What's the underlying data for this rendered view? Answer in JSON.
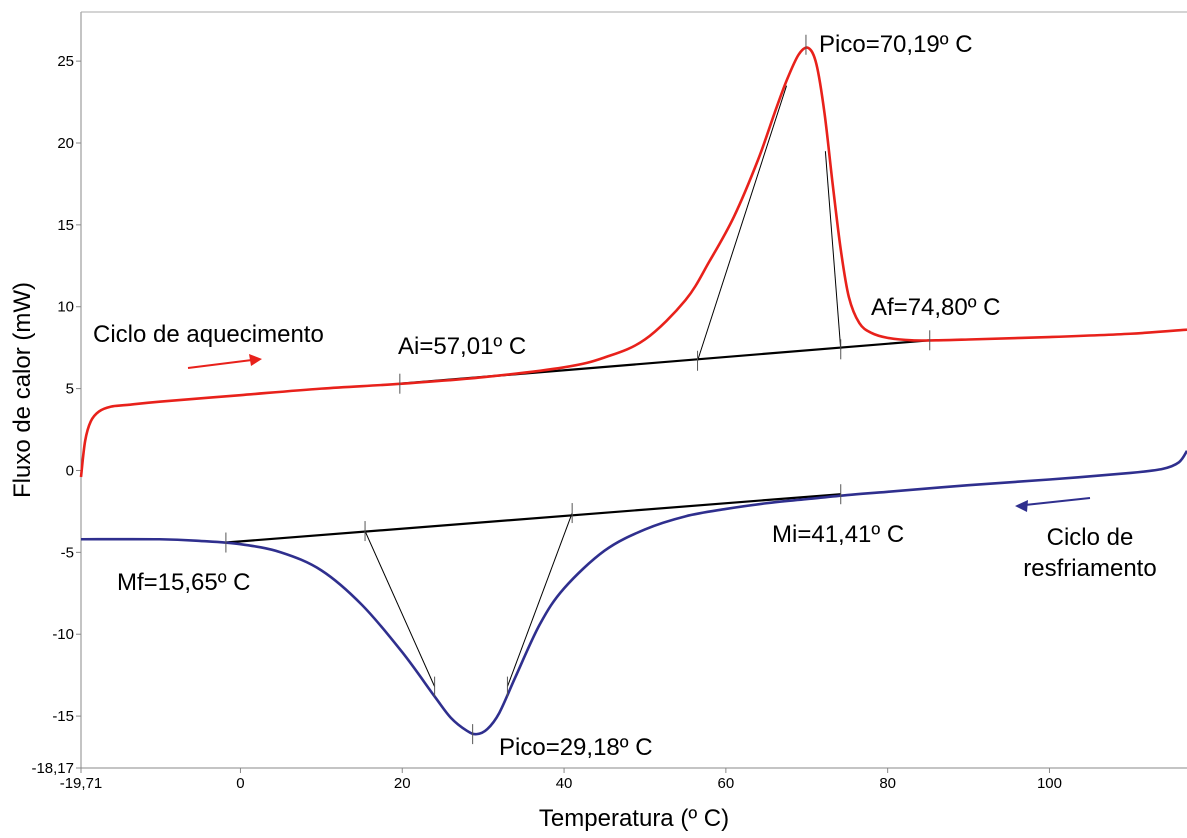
{
  "chart_data": {
    "type": "line",
    "title": "",
    "xlabel": "Temperatura (º C)",
    "ylabel": "Fluxo de calor (mW)",
    "xlim": [
      -19.71,
      117
    ],
    "ylim": [
      -18.17,
      28
    ],
    "x_ticks": [
      {
        "value": -19.71,
        "label": "-19,71"
      },
      {
        "value": 0,
        "label": "0"
      },
      {
        "value": 20,
        "label": "20"
      },
      {
        "value": 40,
        "label": "40"
      },
      {
        "value": 60,
        "label": "60"
      },
      {
        "value": 80,
        "label": "80"
      },
      {
        "value": 100,
        "label": "100"
      }
    ],
    "y_ticks": [
      {
        "value": -18.17,
        "label": "-18,17"
      },
      {
        "value": -15,
        "label": "-15"
      },
      {
        "value": -10,
        "label": "-10"
      },
      {
        "value": -5,
        "label": "-5"
      },
      {
        "value": 0,
        "label": "0"
      },
      {
        "value": 5,
        "label": "5"
      },
      {
        "value": 10,
        "label": "10"
      },
      {
        "value": 15,
        "label": "15"
      },
      {
        "value": 20,
        "label": "20"
      },
      {
        "value": 25,
        "label": "25"
      }
    ],
    "grid": false,
    "series": [
      {
        "name": "Ciclo de aquecimento",
        "color": "#e8211b",
        "x": [
          -19.71,
          -19.2,
          -18.5,
          -17.5,
          -16,
          -14,
          -10,
          0,
          10,
          20,
          30,
          40,
          45,
          50,
          55,
          58,
          61,
          64,
          66,
          67.5,
          69,
          70.2,
          71.2,
          72.2,
          73.2,
          74.2,
          75.2,
          76.5,
          78,
          80,
          83,
          86,
          90,
          100,
          110,
          117
        ],
        "values": [
          -0.4,
          1.8,
          3.0,
          3.6,
          3.9,
          4.0,
          4.2,
          4.6,
          5.0,
          5.3,
          5.7,
          6.3,
          6.9,
          8.0,
          10.4,
          12.8,
          15.5,
          19.0,
          21.8,
          23.8,
          25.4,
          25.8,
          24.8,
          21.8,
          17.5,
          13.5,
          10.6,
          9.0,
          8.4,
          8.1,
          7.95,
          7.95,
          8.0,
          8.15,
          8.35,
          8.6
        ]
      },
      {
        "name": "Ciclo de resfriamento",
        "color": "#2f2f8e",
        "x": [
          -19.71,
          -10,
          -5,
          0,
          5,
          10,
          15,
          20,
          24,
          26,
          28,
          29.2,
          30.5,
          32,
          34,
          37,
          40,
          45,
          50,
          55,
          60,
          65,
          70,
          75,
          80,
          90,
          100,
          110,
          114,
          116,
          117
        ],
        "values": [
          -4.2,
          -4.2,
          -4.3,
          -4.5,
          -5.0,
          -6.1,
          -8.2,
          -11.1,
          -13.8,
          -15.1,
          -15.9,
          -16.1,
          -15.8,
          -14.8,
          -12.6,
          -9.4,
          -7.2,
          -4.9,
          -3.6,
          -2.8,
          -2.35,
          -2.0,
          -1.75,
          -1.5,
          -1.3,
          -0.9,
          -0.55,
          -0.15,
          0.1,
          0.5,
          1.2
        ]
      }
    ],
    "baselines": [
      {
        "x": [
          19.7,
          85.2
        ],
        "values": [
          5.3,
          7.95
        ]
      },
      {
        "x": [
          -1.8,
          74.2
        ],
        "values": [
          -4.4,
          -1.45
        ]
      }
    ],
    "tangents": [
      {
        "x": [
          56.5,
          67.5
        ],
        "values": [
          6.7,
          23.5
        ]
      },
      {
        "x": [
          74.2,
          72.3
        ],
        "values": [
          7.4,
          19.5
        ]
      },
      {
        "x": [
          15.4,
          24
        ],
        "values": [
          -3.7,
          -13.2
        ]
      },
      {
        "x": [
          41,
          33
        ],
        "values": [
          -2.6,
          -13.2
        ]
      }
    ],
    "markers": [
      {
        "x": 19.7,
        "y": 5.3
      },
      {
        "x": 56.5,
        "y": 6.7
      },
      {
        "x": 74.2,
        "y": 7.4
      },
      {
        "x": 85.2,
        "y": 7.95
      },
      {
        "x": 69.9,
        "y": 26.0
      },
      {
        "x": -1.8,
        "y": -4.4
      },
      {
        "x": 15.4,
        "y": -3.7
      },
      {
        "x": 41,
        "y": -2.6
      },
      {
        "x": 74.2,
        "y": -1.45
      },
      {
        "x": 28.7,
        "y": -16.1
      },
      {
        "x": 24,
        "y": -13.2
      },
      {
        "x": 33,
        "y": -13.2
      }
    ],
    "annotations": {
      "heat_cycle": "Ciclo de aquecimento",
      "ai": "Ai=57,01º C",
      "af": "Af=74,80º C",
      "peak_heat": "Pico=70,19º C",
      "mi": "Mi=41,41º C",
      "mf": "Mf=15,65º C",
      "peak_cool": "Pico=29,18º C",
      "cool_cycle_line1": "Ciclo de",
      "cool_cycle_line2": "resfriamento"
    }
  }
}
